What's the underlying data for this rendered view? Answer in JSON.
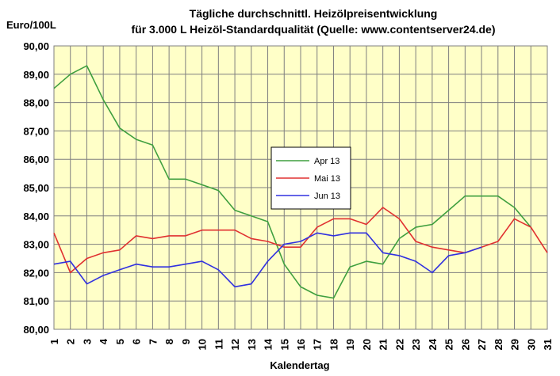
{
  "chart_data": {
    "type": "line",
    "title": "Tägliche durchschnittl. Heizölpreisentwicklung",
    "subtitle": "für 3.000 L Heizöl-Standardqualität (Quelle: www.contentserver24.de)",
    "ylabel": "Euro/100L",
    "xlabel": "Kalendertag",
    "ylim": [
      80,
      90
    ],
    "yticks": [
      "80,00",
      "81,00",
      "82,00",
      "83,00",
      "84,00",
      "85,00",
      "86,00",
      "87,00",
      "88,00",
      "89,00",
      "90,00"
    ],
    "x": [
      "1",
      "2",
      "3",
      "4",
      "5",
      "6",
      "7",
      "8",
      "9",
      "10",
      "11",
      "12",
      "13",
      "14",
      "15",
      "16",
      "17",
      "18",
      "19",
      "20",
      "21",
      "22",
      "23",
      "24",
      "25",
      "26",
      "27",
      "28",
      "29",
      "30",
      "31"
    ],
    "grid": true,
    "legend_position": "center",
    "series": [
      {
        "name": "Apr 13",
        "color": "#3f9f3f",
        "values": [
          88.5,
          89.0,
          89.3,
          88.1,
          87.1,
          86.7,
          86.5,
          85.3,
          85.3,
          85.1,
          84.9,
          84.2,
          84.0,
          83.8,
          82.3,
          81.5,
          81.2,
          81.1,
          82.2,
          82.4,
          82.3,
          83.2,
          83.6,
          83.7,
          84.2,
          84.7,
          84.7,
          84.7,
          84.3,
          83.6,
          null
        ]
      },
      {
        "name": "Mai 13",
        "color": "#e03030",
        "values": [
          83.4,
          82.0,
          82.5,
          82.7,
          82.8,
          83.3,
          83.2,
          83.3,
          83.3,
          83.5,
          83.5,
          83.5,
          83.2,
          83.1,
          82.9,
          82.9,
          83.6,
          83.9,
          83.9,
          83.7,
          84.3,
          83.9,
          83.1,
          82.9,
          82.8,
          82.7,
          82.9,
          83.1,
          83.9,
          83.6,
          82.7
        ]
      },
      {
        "name": "Jun 13",
        "color": "#3030e0",
        "values": [
          82.3,
          82.4,
          81.6,
          81.9,
          82.1,
          82.3,
          82.2,
          82.2,
          82.3,
          82.4,
          82.1,
          81.5,
          81.6,
          82.4,
          83.0,
          83.1,
          83.4,
          83.3,
          83.4,
          83.4,
          82.7,
          82.6,
          82.4,
          82.0,
          82.6,
          82.7,
          82.9,
          null,
          null,
          null,
          null
        ]
      }
    ]
  }
}
